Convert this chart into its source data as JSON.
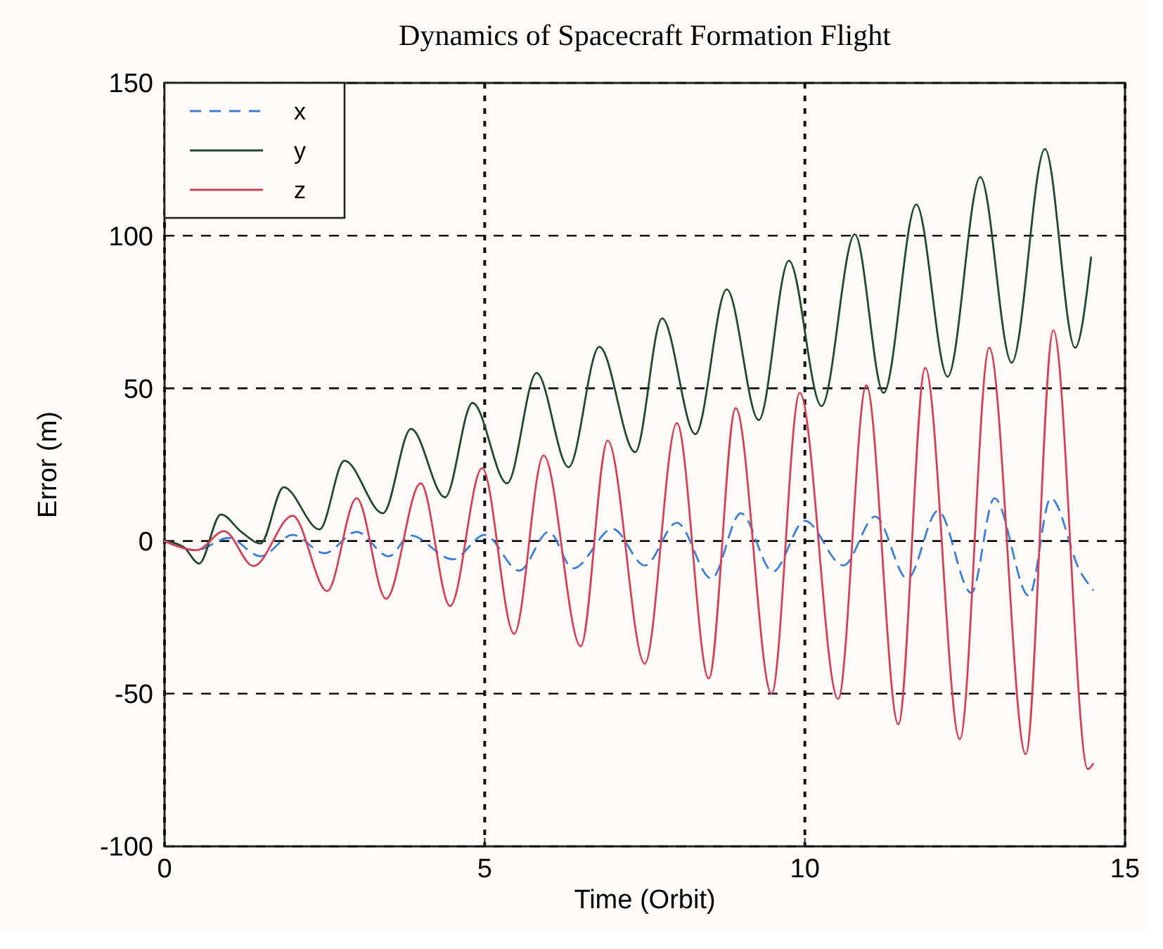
{
  "chart_data": {
    "type": "line",
    "title": "Dynamics of Spacecraft Formation Flight",
    "xlabel": "Time  (Orbit)",
    "ylabel": "Error  (m)",
    "xlim": [
      0,
      15
    ],
    "xticks": [
      0,
      5,
      10,
      15
    ],
    "ylim": [
      -100,
      150
    ],
    "yticks": [
      -100,
      -50,
      0,
      50,
      100,
      150
    ],
    "grid": true,
    "legend": "top left",
    "series": [
      {
        "name": "x",
        "color": "#3a7fd5",
        "line_style": "dashed",
        "x": [
          0,
          0.5,
          1,
          1.5,
          2,
          2.5,
          3,
          3.5,
          3.84,
          4.5,
          5,
          5.54,
          6,
          6.38,
          7,
          7.5,
          8,
          8.54,
          9,
          9.5,
          10,
          10.6,
          11.1,
          11.6,
          12.08,
          12.6,
          12.96,
          13.5,
          13.84,
          14.3,
          14.5
        ],
        "values": [
          0,
          -3,
          1,
          -5,
          2,
          -4,
          3,
          -5,
          1.8,
          -6,
          2,
          -9.7,
          3,
          -9,
          4,
          -8,
          6,
          -12.3,
          9.1,
          -10,
          6.6,
          -8,
          8,
          -12.3,
          9.9,
          -17,
          14,
          -18,
          14,
          -10,
          -16
        ]
      },
      {
        "name": "y",
        "color": "#1f4a2e",
        "line_style": "solid",
        "x": [
          0,
          0.3,
          0.54,
          0.88,
          1.2,
          1.5,
          1.86,
          2.42,
          2.81,
          3.41,
          3.85,
          4.38,
          4.81,
          5.35,
          5.81,
          6.31,
          6.79,
          7.35,
          7.77,
          8.29,
          8.78,
          9.28,
          9.75,
          10.26,
          10.78,
          11.23,
          11.74,
          12.23,
          12.74,
          13.23,
          13.75,
          14.22,
          14.47
        ],
        "values": [
          0,
          -2,
          -7.4,
          8.7,
          3,
          -0.8,
          17.6,
          3.8,
          26.3,
          9.1,
          36.7,
          14.3,
          45.2,
          18.9,
          55,
          24.2,
          63.6,
          29.1,
          72.9,
          35,
          82.4,
          39.6,
          91.8,
          44.2,
          100.4,
          48.5,
          110.2,
          53.8,
          119.2,
          58.4,
          128.4,
          63.3,
          92.9
        ]
      },
      {
        "name": "z",
        "color": "#d0415a",
        "line_style": "solid",
        "x": [
          0,
          0.5,
          0.93,
          1.39,
          2.0,
          2.54,
          3.0,
          3.46,
          4.0,
          4.46,
          4.96,
          5.46,
          5.92,
          6.5,
          6.92,
          7.5,
          8.0,
          8.5,
          8.92,
          9.48,
          9.92,
          10.52,
          10.96,
          11.46,
          11.88,
          12.42,
          12.88,
          13.45,
          13.88,
          14.42,
          14.5
        ],
        "values": [
          0,
          -3,
          3.2,
          -8.2,
          8.3,
          -16.4,
          14,
          -18.9,
          18.9,
          -21.3,
          23.9,
          -30.4,
          28,
          -34.5,
          32.9,
          -40.2,
          38.6,
          -45,
          43.5,
          -50,
          48.5,
          -51.7,
          51,
          -60,
          56.7,
          -64.9,
          63.3,
          -69.8,
          69,
          -74.7,
          -73
        ]
      }
    ]
  }
}
